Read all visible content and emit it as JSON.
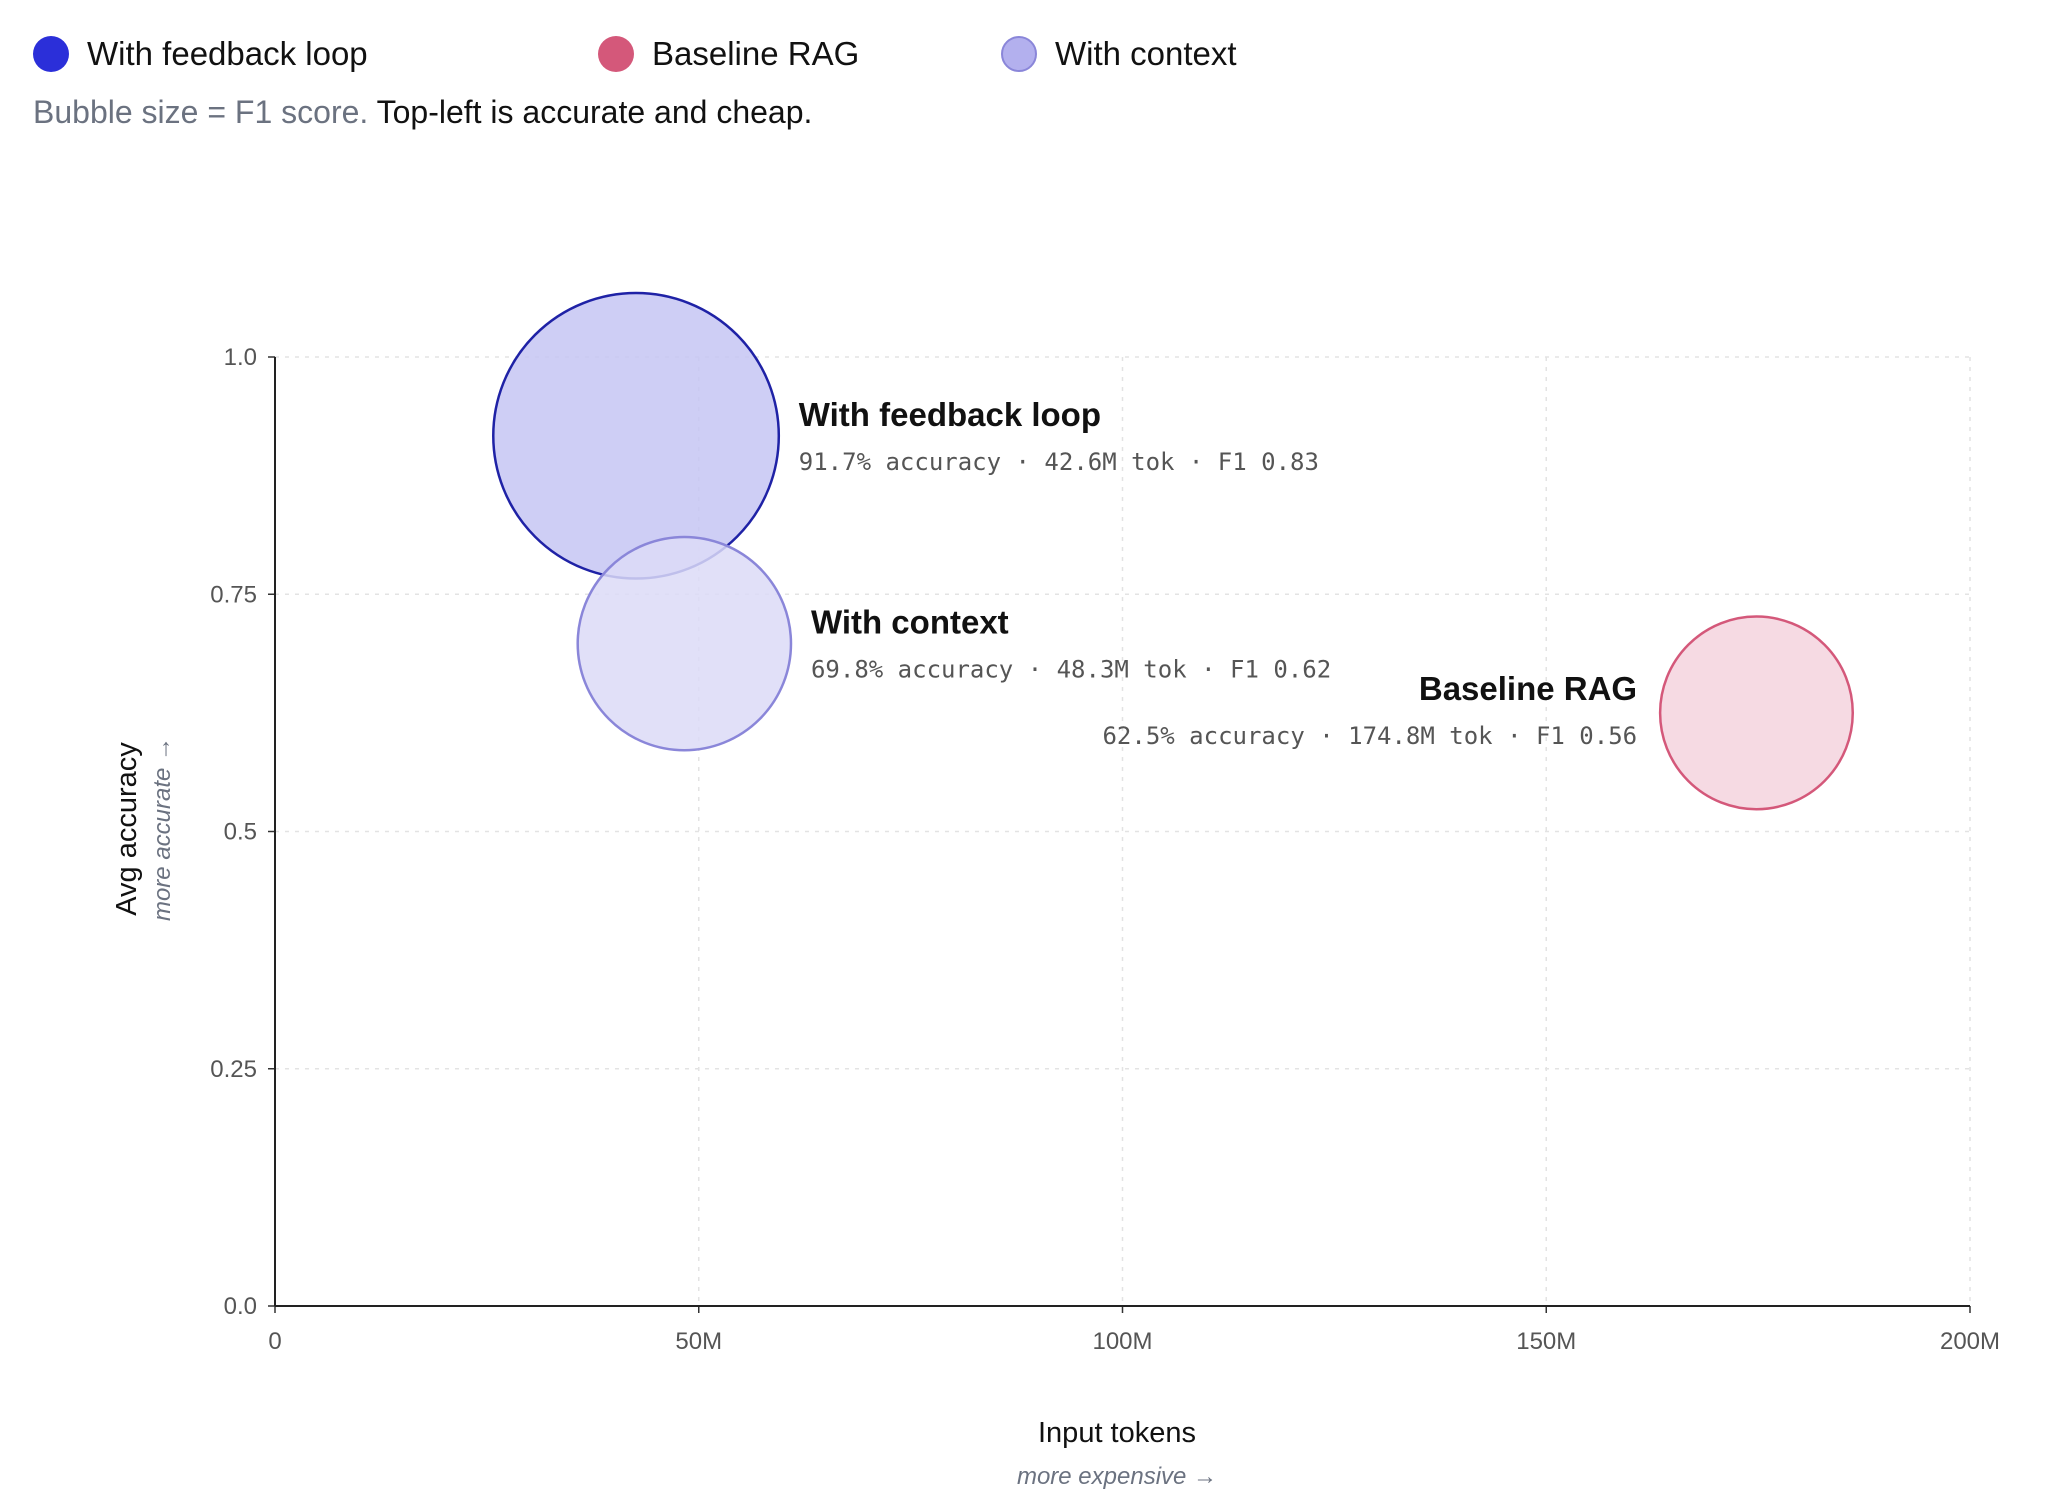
{
  "legend": [
    {
      "label": "With feedback loop",
      "color": "#2b2fd9"
    },
    {
      "label": "Baseline RAG",
      "color": "#d4587a"
    },
    {
      "label": "With context",
      "color": "#b3b0ee"
    }
  ],
  "subtitle": {
    "muted": "Bubble size = F1 score.",
    "strong": "Top-left is accurate and cheap."
  },
  "chart_data": {
    "type": "scatter",
    "subtype": "bubble",
    "xlabel": "Input tokens",
    "xhint": "more expensive →",
    "ylabel": "Avg accuracy",
    "yhint": "more accurate →",
    "xlim": [
      0,
      200000000
    ],
    "ylim": [
      0,
      1.0
    ],
    "x_ticks": [
      {
        "value": 0,
        "label": "0"
      },
      {
        "value": 50000000,
        "label": "50M"
      },
      {
        "value": 100000000,
        "label": "100M"
      },
      {
        "value": 150000000,
        "label": "150M"
      },
      {
        "value": 200000000,
        "label": "200M"
      }
    ],
    "y_ticks": [
      {
        "value": 0,
        "label": "0.0"
      },
      {
        "value": 0.25,
        "label": "0.25"
      },
      {
        "value": 0.5,
        "label": "0.5"
      },
      {
        "value": 0.75,
        "label": "0.75"
      },
      {
        "value": 1.0,
        "label": "1.0"
      }
    ],
    "grid": true,
    "size_encoding": "F1 score",
    "series": [
      {
        "name": "With feedback loop",
        "x": 42600000,
        "y": 0.917,
        "f1": 0.83,
        "detail": "91.7% accuracy · 42.6M tok · F1 0.83",
        "fill": "#c5c6f3",
        "stroke": "#1f22a6",
        "label_side": "right"
      },
      {
        "name": "With context",
        "x": 48300000,
        "y": 0.698,
        "f1": 0.62,
        "detail": "69.8% accuracy · 48.3M tok · F1 0.62",
        "fill": "#dcdbf7",
        "stroke": "#8a86d9",
        "label_side": "right"
      },
      {
        "name": "Baseline RAG",
        "x": 174800000,
        "y": 0.625,
        "f1": 0.56,
        "detail": "62.5% accuracy · 174.8M tok · F1 0.56",
        "fill": "#f5d4de",
        "stroke": "#d4587a",
        "label_side": "left"
      }
    ]
  }
}
